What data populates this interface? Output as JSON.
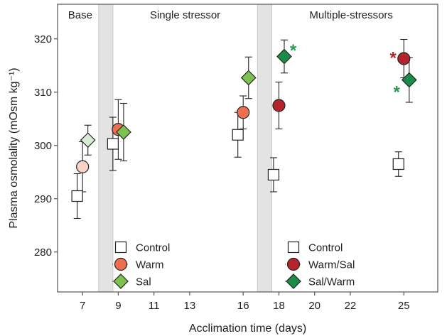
{
  "chart_data": {
    "type": "scatter",
    "xlabel": "Acclimation time (days)",
    "ylabel": "Plasma osmolality (mOsm kg⁻¹)",
    "xlim": [
      5.6,
      26.9
    ],
    "ylim": [
      272.5,
      326.5
    ],
    "x_ticks": [
      7,
      9,
      11,
      13,
      16,
      18,
      20,
      22,
      25
    ],
    "y_ticks": [
      280,
      290,
      300,
      310,
      320
    ],
    "grid": false,
    "periods": [
      {
        "label": "Base",
        "x_start": 5.6,
        "x_end": 8.3
      },
      {
        "label": "Single stressor",
        "x_start": 8.3,
        "x_end": 17.2
      },
      {
        "label": "Multiple-stressors",
        "x_start": 17.2,
        "x_end": 26.9
      }
    ],
    "period_separators": [
      {
        "x_start": 7.9,
        "x_end": 8.7
      },
      {
        "x_start": 16.8,
        "x_end": 17.6
      }
    ],
    "legends": [
      {
        "placement": "bottom-left of single stressor panel",
        "entries": [
          {
            "label": "Control",
            "series": "Control"
          },
          {
            "label": "Warm",
            "series": "Warm"
          },
          {
            "label": "Sal",
            "series": "Sal"
          }
        ]
      },
      {
        "placement": "bottom-left of multiple-stressors panel",
        "entries": [
          {
            "label": "Control",
            "series": "Control"
          },
          {
            "label": "Warm/Sal",
            "series": "Warm/Sal"
          },
          {
            "label": "Sal/Warm",
            "series": "Sal/Warm"
          }
        ]
      }
    ],
    "series": [
      {
        "name": "Control",
        "marker": "square",
        "fill": "#ffffff",
        "points": [
          {
            "x": 6.7,
            "y": 290.5,
            "err": 4.2
          },
          {
            "x": 8.7,
            "y": 300.3,
            "err": 5.0
          },
          {
            "x": 15.7,
            "y": 302.0,
            "err": 4.2
          },
          {
            "x": 17.7,
            "y": 294.5,
            "err": 3.2
          },
          {
            "x": 24.7,
            "y": 296.5,
            "err": 2.3
          }
        ]
      },
      {
        "name": "Warm",
        "marker": "circle",
        "fill": "#ee6f50",
        "points": [
          {
            "x": 9.0,
            "y": 303.0,
            "err": 5.6
          },
          {
            "x": 16.0,
            "y": 306.2,
            "err": 3.1
          }
        ]
      },
      {
        "name": "Warm (baseline)",
        "marker": "circle",
        "fill": "#f9d2c9",
        "points": [
          {
            "x": 7.0,
            "y": 296.0,
            "err": 4.7
          }
        ]
      },
      {
        "name": "Sal",
        "marker": "diamond",
        "fill": "#7cc24e",
        "points": [
          {
            "x": 9.3,
            "y": 302.5,
            "err": 5.4
          },
          {
            "x": 16.3,
            "y": 312.7,
            "err": 3.9
          }
        ]
      },
      {
        "name": "Sal (baseline)",
        "marker": "diamond",
        "fill": "#d7ecd2",
        "points": [
          {
            "x": 7.3,
            "y": 301.0,
            "err": 2.8
          }
        ]
      },
      {
        "name": "Warm/Sal",
        "marker": "circle",
        "fill": "#b3242c",
        "points": [
          {
            "x": 18.0,
            "y": 307.5,
            "err": 4.4
          },
          {
            "x": 25.0,
            "y": 316.3,
            "err": 3.6
          }
        ]
      },
      {
        "name": "Sal/Warm",
        "marker": "diamond",
        "fill": "#1a8c47",
        "points": [
          {
            "x": 18.3,
            "y": 316.7,
            "err": 3.1
          },
          {
            "x": 25.3,
            "y": 312.3,
            "err": 4.2
          }
        ]
      }
    ],
    "annotations": [
      {
        "text": "*",
        "x": 18.8,
        "y": 318.4,
        "color": "#2a9a54"
      },
      {
        "text": "*",
        "x": 24.4,
        "y": 317.0,
        "color": "#b3242c"
      },
      {
        "text": "*",
        "x": 24.6,
        "y": 310.6,
        "color": "#2a9a54"
      }
    ]
  }
}
